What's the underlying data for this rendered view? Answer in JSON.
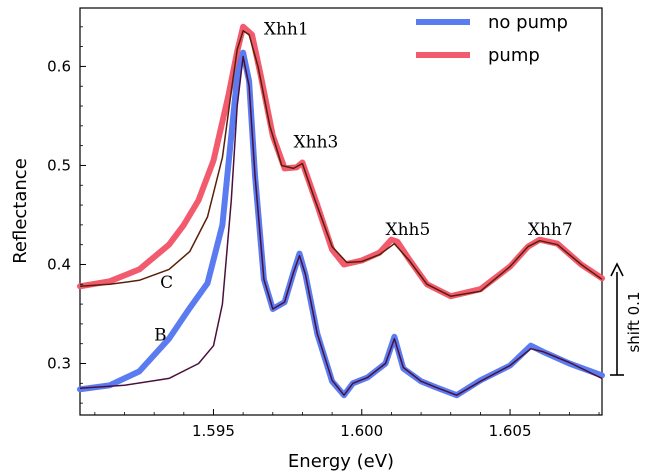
{
  "chart_data": {
    "type": "line",
    "xlabel": "Energy (eV)",
    "ylabel": "Reflectance",
    "xlim": [
      1.5905,
      1.6081
    ],
    "ylim": [
      0.248,
      0.659
    ],
    "xticks": [
      {
        "value": 1.595,
        "label": "1.595"
      },
      {
        "value": 1.6,
        "label": "1.600"
      },
      {
        "value": 1.605,
        "label": "1.605"
      }
    ],
    "yticks": [
      {
        "value": 0.3,
        "label": "0.3"
      },
      {
        "value": 0.4,
        "label": "0.4"
      },
      {
        "value": 0.5,
        "label": "0.5"
      },
      {
        "value": 0.6,
        "label": "0.6"
      }
    ],
    "legend": {
      "position": "top-right",
      "entries": [
        "no pump",
        "pump"
      ]
    },
    "colors": {
      "no_pump": "#5b7cf0",
      "pump": "#f25a6e",
      "fit_upper": "#5a1e08",
      "fit_lower": "#4b0f3c"
    },
    "series": [
      {
        "name": "pump",
        "x": [
          1.5905,
          1.5915,
          1.5925,
          1.5935,
          1.594,
          1.5945,
          1.595,
          1.5955,
          1.5958,
          1.596,
          1.5963,
          1.5966,
          1.597,
          1.5974,
          1.5978,
          1.598,
          1.5985,
          1.599,
          1.5994,
          1.6,
          1.6006,
          1.601,
          1.6012,
          1.6016,
          1.6022,
          1.603,
          1.604,
          1.605,
          1.6056,
          1.606,
          1.6066,
          1.6074,
          1.6081
        ],
        "y": [
          0.378,
          0.383,
          0.395,
          0.42,
          0.44,
          0.465,
          0.505,
          0.57,
          0.615,
          0.64,
          0.632,
          0.59,
          0.53,
          0.497,
          0.498,
          0.503,
          0.46,
          0.415,
          0.4,
          0.404,
          0.412,
          0.425,
          0.423,
          0.405,
          0.38,
          0.368,
          0.375,
          0.398,
          0.418,
          0.425,
          0.421,
          0.4,
          0.386
        ]
      },
      {
        "name": "no pump",
        "x": [
          1.5905,
          1.5915,
          1.5925,
          1.5935,
          1.5942,
          1.5948,
          1.5953,
          1.5956,
          1.5958,
          1.596,
          1.5962,
          1.5964,
          1.5967,
          1.597,
          1.5974,
          1.5977,
          1.5979,
          1.5981,
          1.5985,
          1.599,
          1.5994,
          1.5997,
          1.6002,
          1.6008,
          1.6011,
          1.6014,
          1.602,
          1.6025,
          1.6032,
          1.604,
          1.605,
          1.6057,
          1.6061,
          1.607,
          1.6081
        ],
        "y": [
          0.274,
          0.278,
          0.292,
          0.325,
          0.356,
          0.381,
          0.44,
          0.53,
          0.59,
          0.614,
          0.585,
          0.49,
          0.385,
          0.355,
          0.362,
          0.392,
          0.411,
          0.39,
          0.33,
          0.282,
          0.268,
          0.28,
          0.286,
          0.3,
          0.327,
          0.295,
          0.282,
          0.276,
          0.268,
          0.283,
          0.298,
          0.318,
          0.312,
          0.3,
          0.288
        ]
      }
    ],
    "fits": [
      {
        "for": "pump",
        "x": [
          1.5905,
          1.5915,
          1.5925,
          1.5935,
          1.5942,
          1.5948,
          1.5953,
          1.5956,
          1.5958,
          1.596,
          1.5962,
          1.5965,
          1.5969,
          1.5973,
          1.5977,
          1.598,
          1.5984,
          1.599,
          1.5995,
          1.6,
          1.6006,
          1.6011,
          1.6016,
          1.6022,
          1.603,
          1.604,
          1.605,
          1.6056,
          1.606,
          1.6066,
          1.6074,
          1.6081
        ],
        "y": [
          0.378,
          0.38,
          0.384,
          0.395,
          0.413,
          0.448,
          0.508,
          0.575,
          0.617,
          0.636,
          0.632,
          0.6,
          0.54,
          0.5,
          0.497,
          0.502,
          0.467,
          0.418,
          0.402,
          0.403,
          0.41,
          0.421,
          0.404,
          0.38,
          0.368,
          0.373,
          0.398,
          0.418,
          0.424,
          0.42,
          0.4,
          0.385
        ]
      },
      {
        "for": "no pump",
        "x": [
          1.5905,
          1.592,
          1.5935,
          1.5945,
          1.595,
          1.5953,
          1.5956,
          1.5958,
          1.596,
          1.5962,
          1.5964,
          1.5967,
          1.597,
          1.5974,
          1.5977,
          1.5979,
          1.5981,
          1.5985,
          1.599,
          1.5994,
          1.5997,
          1.6002,
          1.6008,
          1.6011,
          1.6014,
          1.602,
          1.6025,
          1.6032,
          1.604,
          1.605,
          1.6057,
          1.6061,
          1.607,
          1.6081
        ],
        "y": [
          0.275,
          0.278,
          0.285,
          0.3,
          0.318,
          0.36,
          0.465,
          0.56,
          0.61,
          0.58,
          0.49,
          0.385,
          0.355,
          0.362,
          0.392,
          0.409,
          0.39,
          0.33,
          0.283,
          0.268,
          0.28,
          0.286,
          0.3,
          0.325,
          0.296,
          0.282,
          0.276,
          0.268,
          0.282,
          0.298,
          0.315,
          0.312,
          0.301,
          0.285
        ]
      }
    ],
    "annotations": [
      {
        "text": "Xhh1",
        "x": 1.5967,
        "y": 0.632
      },
      {
        "text": "Xhh3",
        "x": 1.5977,
        "y": 0.518
      },
      {
        "text": "Xhh5",
        "x": 1.6008,
        "y": 0.43
      },
      {
        "text": "Xhh7",
        "x": 1.6056,
        "y": 0.43
      },
      {
        "text": "C",
        "x": 1.5932,
        "y": 0.376
      },
      {
        "text": "B",
        "x": 1.593,
        "y": 0.323
      }
    ],
    "shift_label": "shift 0.1"
  }
}
